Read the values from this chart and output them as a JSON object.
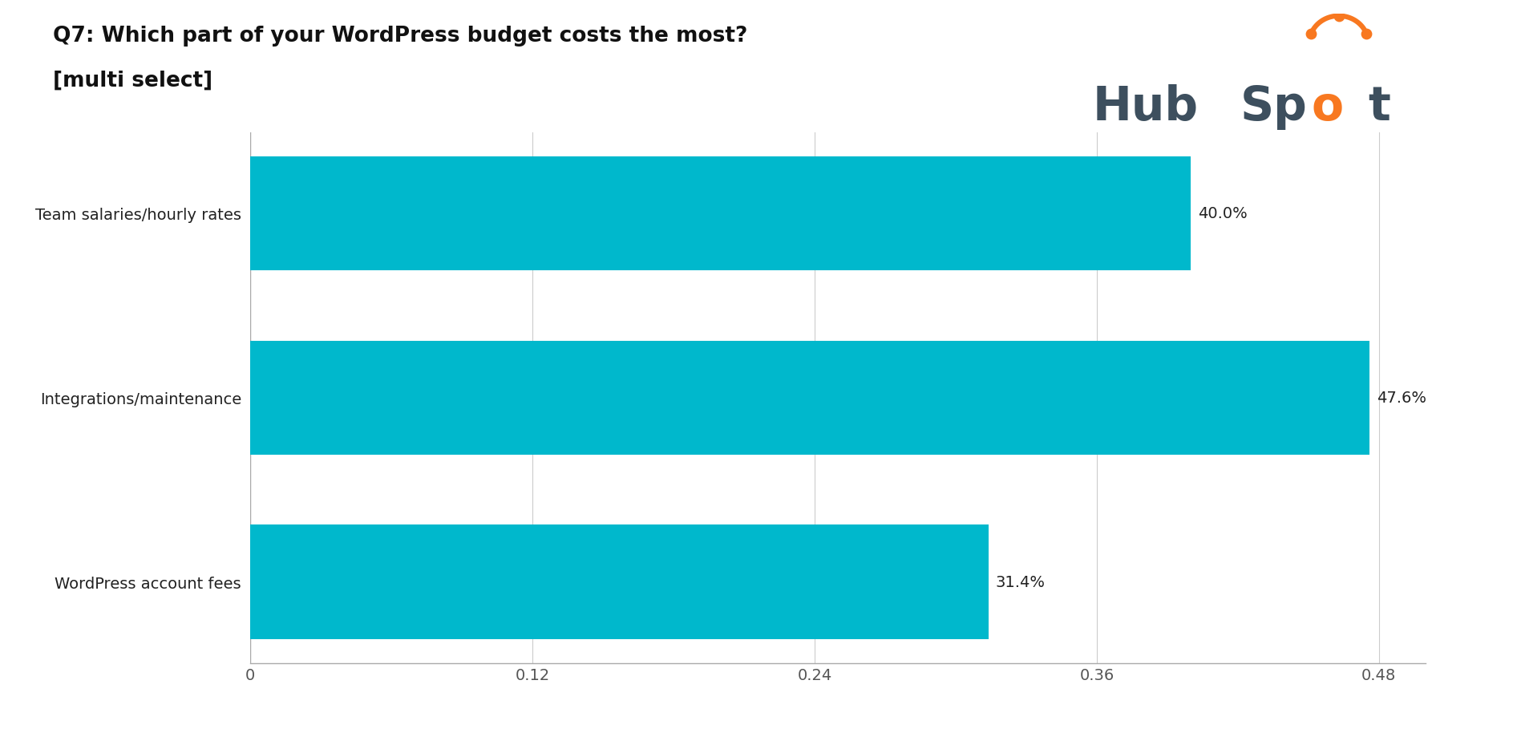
{
  "title_line1": "Q7: Which part of your WordPress budget costs the most?",
  "title_line2": "[multi select]",
  "categories": [
    "WordPress account fees",
    "Integrations/maintenance",
    "Team salaries/hourly rates"
  ],
  "values": [
    0.314,
    0.476,
    0.4
  ],
  "labels": [
    "31.4%",
    "47.6%",
    "40.0%"
  ],
  "bar_color": "#00b8cc",
  "xlim": [
    0,
    0.5
  ],
  "xticks": [
    0,
    0.12,
    0.24,
    0.36,
    0.48
  ],
  "xtick_labels": [
    "0",
    "0.12",
    "0.24",
    "0.36",
    "0.48"
  ],
  "background_color": "#ffffff",
  "title_fontsize": 19,
  "label_fontsize": 14,
  "tick_fontsize": 14,
  "bar_height": 0.62,
  "hubspot_color_main": "#3d4f5e",
  "hubspot_color_orange": "#f87820"
}
